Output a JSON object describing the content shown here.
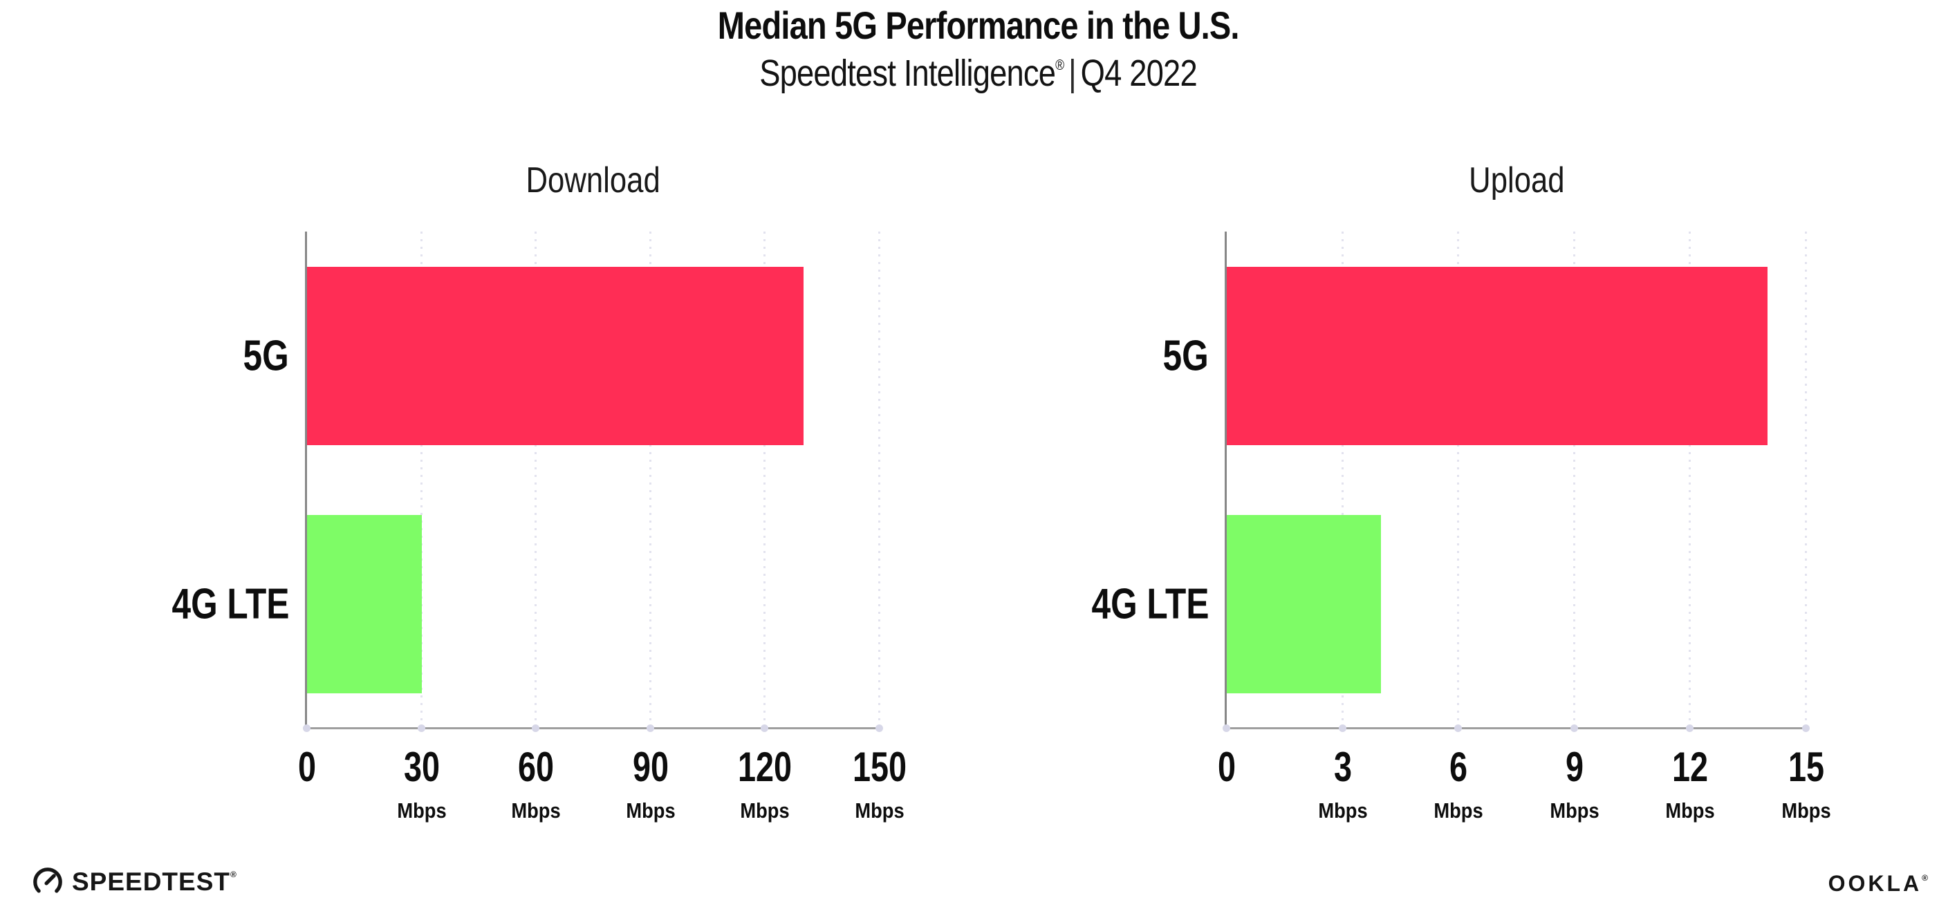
{
  "header": {
    "title": "Median 5G Performance in the U.S.",
    "subtitle": {
      "brand": "Speedtest Intelligence",
      "reg": "®",
      "divider": "|",
      "period": "Q4 2022"
    }
  },
  "chart_data": [
    {
      "type": "bar",
      "orientation": "horizontal",
      "title": "Download",
      "categories": [
        "5G",
        "4G LTE"
      ],
      "values": [
        130,
        30
      ],
      "unit": "Mbps",
      "xlim": [
        0,
        150
      ],
      "xticks": [
        0,
        30,
        60,
        90,
        120,
        150
      ],
      "bar_colors": [
        "#ff2d55",
        "#7efc66"
      ],
      "grid": "vertical-dotted",
      "legend": "none"
    },
    {
      "type": "bar",
      "orientation": "horizontal",
      "title": "Upload",
      "categories": [
        "5G",
        "4G LTE"
      ],
      "values": [
        14,
        4
      ],
      "unit": "Mbps",
      "xlim": [
        0,
        15
      ],
      "xticks": [
        0,
        3,
        6,
        9,
        12,
        15
      ],
      "bar_colors": [
        "#ff2d55",
        "#7efc66"
      ],
      "grid": "vertical-dotted",
      "legend": "none"
    }
  ],
  "footer": {
    "speedtest": {
      "label": "SPEEDTEST",
      "reg": "®",
      "icon": "speedtest-gauge-icon"
    },
    "ookla": {
      "label": "OOKLA",
      "reg": "®"
    }
  },
  "colors": {
    "bar_5g": "#ff2d55",
    "bar_4g_lte": "#7efc66",
    "title_text": "#0d0d0d",
    "axis_line": "#8c8c8c",
    "gridline": "#e2e2ee",
    "background": "#ffffff"
  }
}
